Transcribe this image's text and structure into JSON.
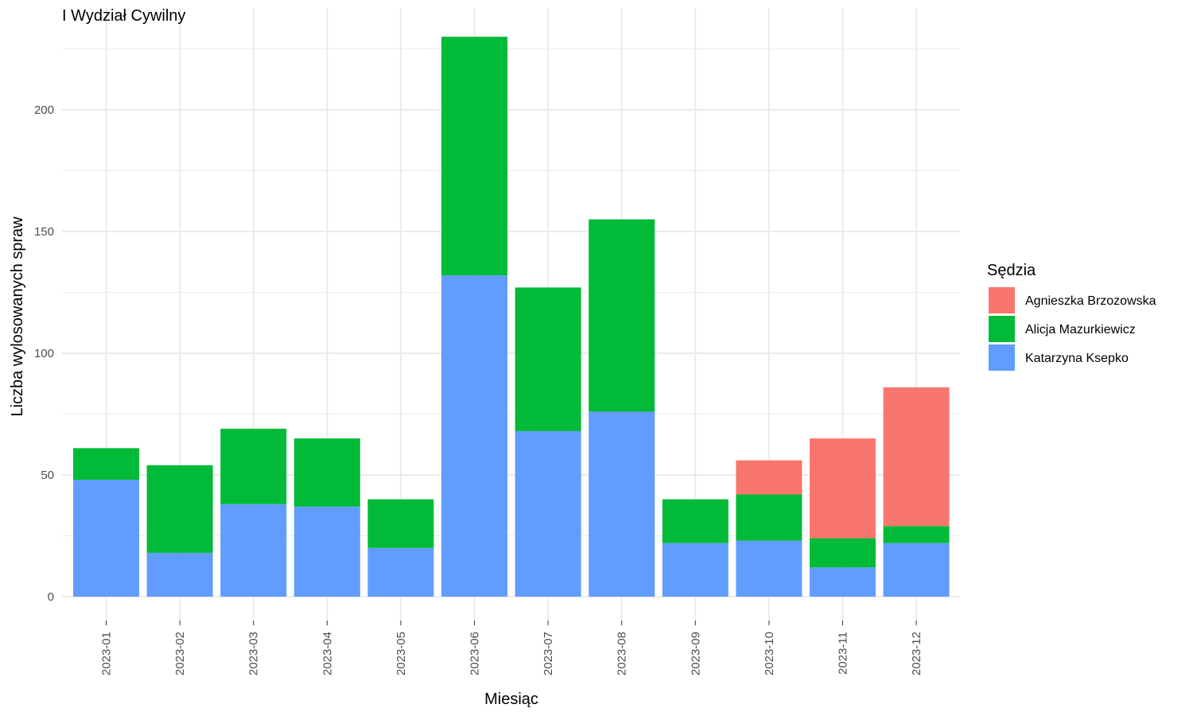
{
  "chart_data": {
    "type": "bar",
    "stacked": true,
    "title": "I Wydział Cywilny",
    "xlabel": "Miesiąc",
    "ylabel": "Liczba wylosowanych spraw",
    "ylim": [
      0,
      230
    ],
    "yticks": [
      0,
      50,
      100,
      150,
      200
    ],
    "grid": true,
    "legend_position": "right",
    "legend_title": "Sędzia",
    "categories": [
      "2023-01",
      "2023-02",
      "2023-03",
      "2023-04",
      "2023-05",
      "2023-06",
      "2023-07",
      "2023-08",
      "2023-09",
      "2023-10",
      "2023-11",
      "2023-12"
    ],
    "stack_order": [
      "Katarzyna Ksepko",
      "Alicja Mazurkiewicz",
      "Agnieszka Brzozowska"
    ],
    "series": [
      {
        "name": "Agnieszka Brzozowska",
        "color": "#F8766D",
        "values": [
          0,
          0,
          0,
          0,
          0,
          0,
          0,
          0,
          0,
          14,
          41,
          57
        ]
      },
      {
        "name": "Alicja Mazurkiewicz",
        "color": "#00BA38",
        "values": [
          13,
          36,
          31,
          28,
          20,
          98,
          59,
          79,
          18,
          19,
          12,
          7
        ]
      },
      {
        "name": "Katarzyna Ksepko",
        "color": "#619CFF",
        "values": [
          48,
          18,
          38,
          37,
          20,
          132,
          68,
          76,
          22,
          23,
          12,
          22
        ]
      }
    ]
  }
}
